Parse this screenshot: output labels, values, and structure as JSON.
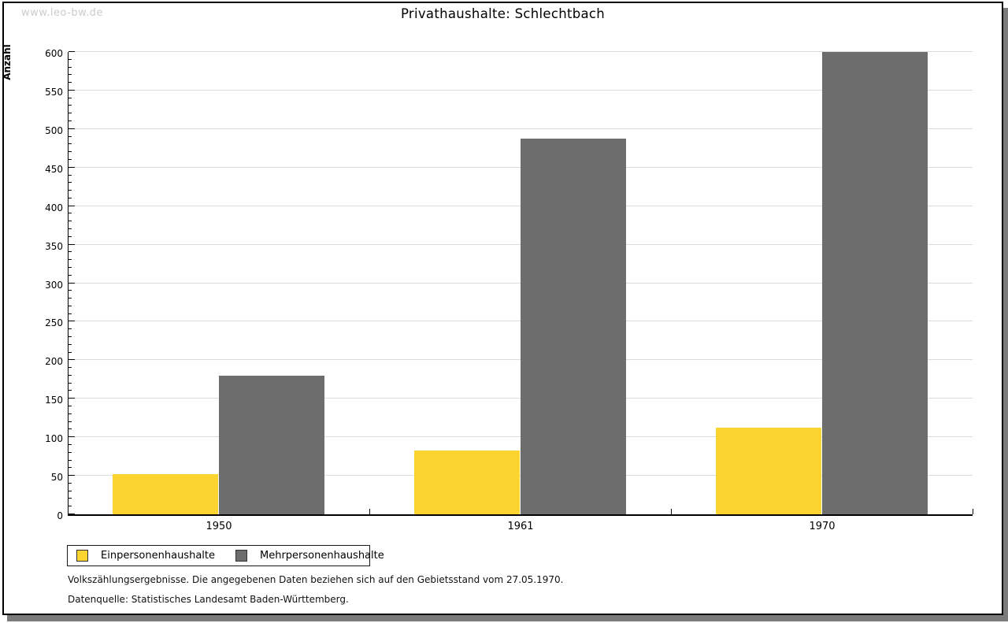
{
  "watermark": "www.leo-bw.de",
  "chart_data": {
    "type": "bar",
    "title": "Privathaushalte: Schlechtbach",
    "ylabel": "Anzahl",
    "xlabel": "",
    "categories": [
      "1950",
      "1961",
      "1970"
    ],
    "series": [
      {
        "name": "Einpersonenhaushalte",
        "color": "#FCD42F",
        "values": [
          52,
          83,
          112
        ]
      },
      {
        "name": "Mehrpersonenhaushalte",
        "color": "#6D6D6D",
        "values": [
          180,
          488,
          600
        ]
      }
    ],
    "ylim": [
      0,
      600
    ],
    "y_major_step": 50,
    "y_minor_step": 10,
    "grid": "horizontal-major",
    "gridline_color": "#dcdcdc",
    "legend_position": "bottom-left"
  },
  "footnotes": [
    "Volkszählungsergebnisse. Die angegebenen Daten beziehen sich auf den Gebietsstand vom 27.05.1970.",
    "Datenquelle: Statistisches Landesamt Baden-Württemberg."
  ]
}
